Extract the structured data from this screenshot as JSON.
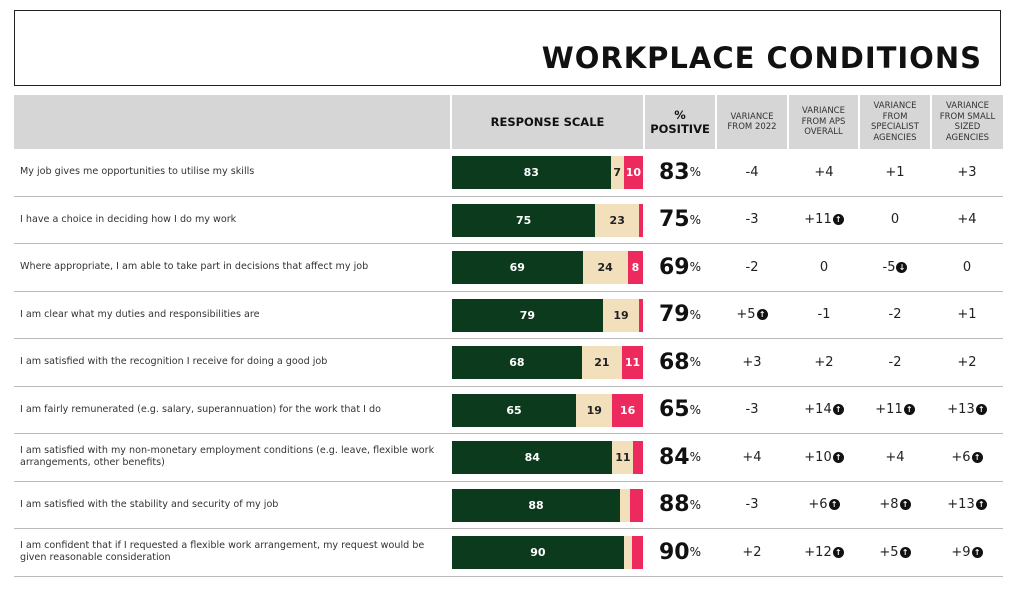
{
  "title": "WORKPLACE CONDITIONS",
  "headers": {
    "response_scale": "RESPONSE SCALE",
    "positive": "% POSITIVE",
    "var_2022": "VARIANCE FROM 2022",
    "var_aps": "VARIANCE FROM APS OVERALL",
    "var_specialist": "VARIANCE FROM SPECIALIST AGENCIES",
    "var_small": "VARIANCE FROM SMALL SIZED AGENCIES"
  },
  "colors": {
    "positive": "#0b3a1d",
    "neutral": "#f2e0bd",
    "negative": "#ec2a5e"
  },
  "chart_data": {
    "type": "bar",
    "stacked": true,
    "orientation": "horizontal",
    "xlim": [
      0,
      100
    ],
    "categories": [
      "My job gives me opportunities to utilise my skills",
      "I have a choice in deciding how I do my work",
      "Where appropriate, I am able to take part in decisions that affect my job",
      "I am clear what my duties and responsibilities are",
      "I am satisfied with the recognition I receive for doing a good job",
      "I am fairly remunerated (e.g. salary, superannuation) for the work that I do",
      "I am satisfied with my non-monetary employment conditions (e.g. leave, flexible work arrangements, other benefits)",
      "I am satisfied with the stability and security of my job",
      "I am confident that if I requested a flexible work arrangement, my request would be given reasonable consideration"
    ],
    "series": [
      {
        "values": [
          83,
          75,
          69,
          79,
          68,
          65,
          84,
          88,
          90
        ],
        "labels": [
          "83",
          "75",
          "69",
          "79",
          "68",
          "65",
          "84",
          "88",
          "90"
        ]
      },
      {
        "values": [
          7,
          23,
          24,
          19,
          21,
          19,
          11,
          5,
          4
        ],
        "labels": [
          "7",
          "23",
          "24",
          "19",
          "21",
          "19",
          "11",
          "",
          ""
        ]
      },
      {
        "values": [
          10,
          2,
          8,
          2,
          11,
          16,
          5,
          7,
          6
        ],
        "labels": [
          "10",
          "",
          "8",
          "",
          "11",
          "16",
          "",
          "",
          ""
        ]
      }
    ]
  },
  "rows": [
    {
      "pct": "83",
      "unit": "%",
      "v": [
        {
          "t": "-4"
        },
        {
          "t": "+4"
        },
        {
          "t": "+1"
        },
        {
          "t": "+3"
        }
      ]
    },
    {
      "pct": "75",
      "unit": "%",
      "v": [
        {
          "t": "-3"
        },
        {
          "t": "+11",
          "dir": "up"
        },
        {
          "t": "0"
        },
        {
          "t": "+4"
        }
      ]
    },
    {
      "pct": "69",
      "unit": "%",
      "v": [
        {
          "t": "-2"
        },
        {
          "t": "0"
        },
        {
          "t": "-5",
          "dir": "down"
        },
        {
          "t": "0"
        }
      ]
    },
    {
      "pct": "79",
      "unit": "%",
      "v": [
        {
          "t": "+5",
          "dir": "up"
        },
        {
          "t": "-1"
        },
        {
          "t": "-2"
        },
        {
          "t": "+1"
        }
      ]
    },
    {
      "pct": "68",
      "unit": "%",
      "v": [
        {
          "t": "+3"
        },
        {
          "t": "+2"
        },
        {
          "t": "-2"
        },
        {
          "t": "+2"
        }
      ]
    },
    {
      "pct": "65",
      "unit": "%",
      "v": [
        {
          "t": "-3"
        },
        {
          "t": "+14",
          "dir": "up"
        },
        {
          "t": "+11",
          "dir": "up"
        },
        {
          "t": "+13",
          "dir": "up"
        }
      ]
    },
    {
      "pct": "84",
      "unit": "%",
      "v": [
        {
          "t": "+4"
        },
        {
          "t": "+10",
          "dir": "up"
        },
        {
          "t": "+4"
        },
        {
          "t": "+6",
          "dir": "up"
        }
      ]
    },
    {
      "pct": "88",
      "unit": "%",
      "v": [
        {
          "t": "-3"
        },
        {
          "t": "+6",
          "dir": "up"
        },
        {
          "t": "+8",
          "dir": "up"
        },
        {
          "t": "+13",
          "dir": "up"
        }
      ]
    },
    {
      "pct": "90",
      "unit": "%",
      "v": [
        {
          "t": "+2"
        },
        {
          "t": "+12",
          "dir": "up"
        },
        {
          "t": "+5",
          "dir": "up"
        },
        {
          "t": "+9",
          "dir": "up"
        }
      ]
    }
  ]
}
